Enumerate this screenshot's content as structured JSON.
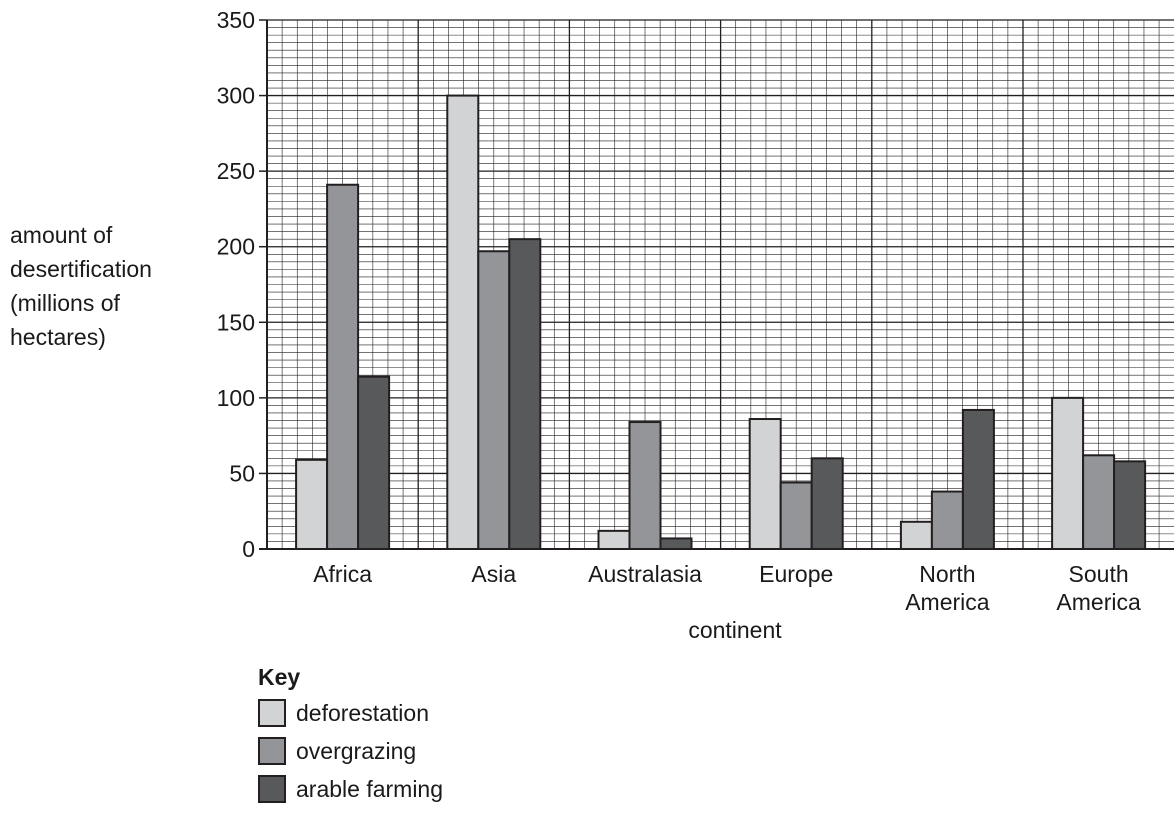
{
  "chart_data": {
    "type": "bar",
    "title": "",
    "xlabel": "continent",
    "ylabel_lines": [
      "amount of",
      "desertification",
      "(millions of",
      "hectares)"
    ],
    "categories": [
      [
        "Africa"
      ],
      [
        "Asia"
      ],
      [
        "Australasia"
      ],
      [
        "Europe"
      ],
      [
        "North",
        "America"
      ],
      [
        "South",
        "America"
      ]
    ],
    "series": [
      {
        "name": "deforestation",
        "color": "#d2d3d4",
        "values": [
          59,
          300,
          12,
          86,
          18,
          100
        ]
      },
      {
        "name": "overgrazing",
        "color": "#939598",
        "values": [
          241,
          197,
          84,
          44,
          38,
          62
        ]
      },
      {
        "name": "arable farming",
        "color": "#58595b",
        "values": [
          114,
          205,
          7,
          60,
          92,
          58
        ]
      }
    ],
    "ylim": [
      0,
      350
    ],
    "yticks": [
      0,
      50,
      100,
      150,
      200,
      250,
      300,
      350
    ],
    "grid": true,
    "legend_position": "bottom-left",
    "legend_title": "Key"
  }
}
